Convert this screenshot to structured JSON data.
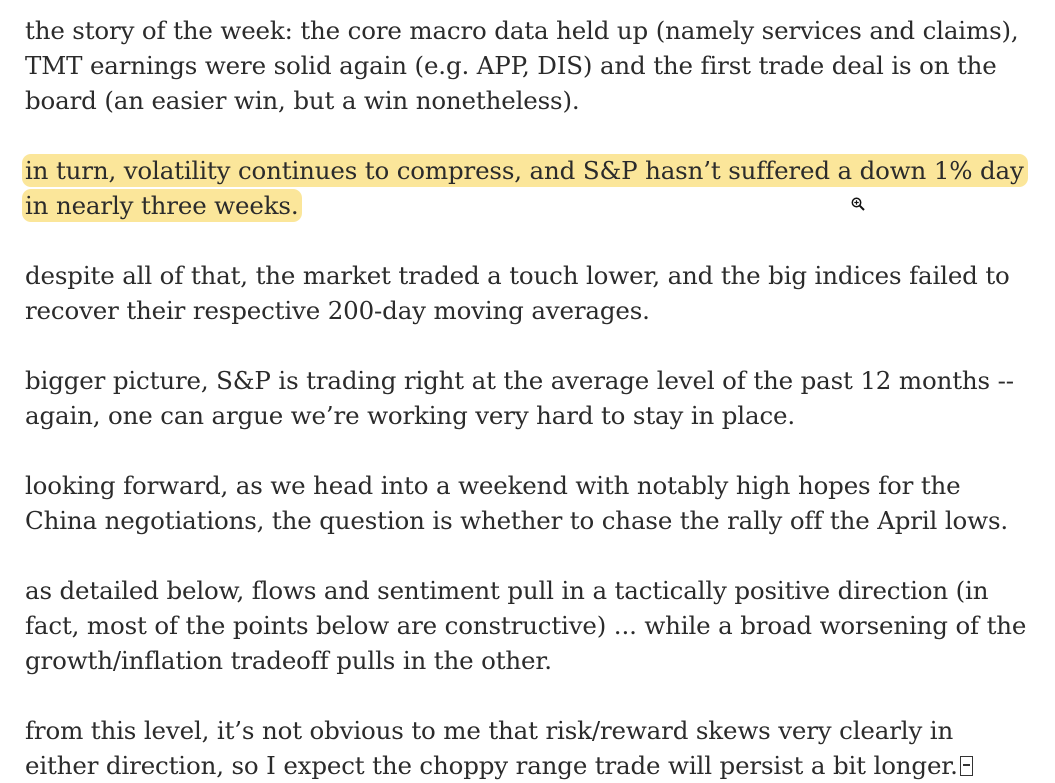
{
  "paragraphs": [
    {
      "highlighted": false,
      "lines": [
        "the story of the week: the core macro data held up (namely services and claims),",
        "TMT earnings were solid again (e.g. APP, DIS) and the first trade deal is on the",
        "board (an easier win, but a win nonetheless)."
      ]
    },
    {
      "highlighted": true,
      "highlight_color": "#fbe69a",
      "lines": [
        "in turn, volatility continues to compress, and S&P hasn’t suffered a down 1% day",
        "in nearly three weeks."
      ]
    },
    {
      "highlighted": false,
      "lines": [
        "despite all of that, the market traded a touch lower, and the big indices failed to",
        "recover their respective 200-day moving averages."
      ]
    },
    {
      "highlighted": false,
      "lines": [
        "bigger picture, S&P is trading right at the average level of the past 12 months --",
        "again, one can argue we’re working very hard to stay in place."
      ]
    },
    {
      "highlighted": false,
      "lines": [
        "looking forward, as we head into a weekend with notably high hopes for the",
        "China negotiations, the question is whether to chase the rally off the April lows."
      ]
    },
    {
      "highlighted": false,
      "lines": [
        "as detailed below, flows and sentiment pull in a tactically positive direction (in",
        "fact, most of the points below are constructive) ... while a broad worsening of the",
        "growth/inflation tradeoff pulls in the other."
      ]
    },
    {
      "highlighted": false,
      "lines": [
        "from this level, it’s not obvious to me that risk/reward skews very clearly in",
        "either direction, so I expect the choppy range trade will persist a bit longer."
      ]
    }
  ],
  "icons": {
    "cursor": "zoom-in-magnifier-icon",
    "end_marker": "missing-glyph-icon"
  },
  "colors": {
    "text": "#2b2b2b",
    "highlight": "#fbe69a",
    "background": "#ffffff"
  }
}
